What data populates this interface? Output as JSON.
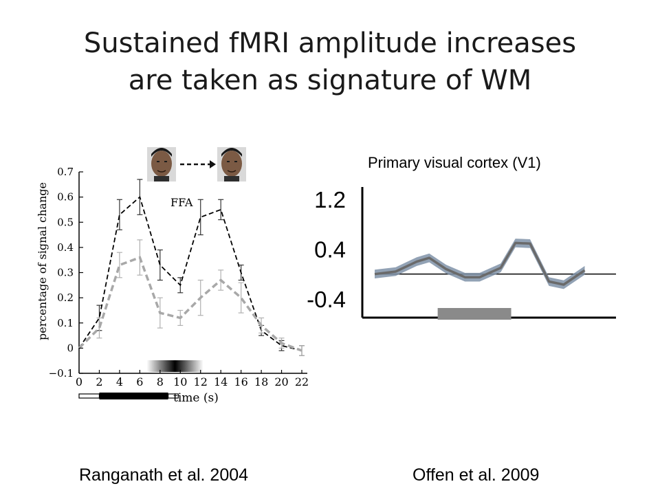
{
  "slide": {
    "title_line1": "Sustained fMRI amplitude increases",
    "title_line2": "are taken as signature of WM",
    "caption_left": "Ranganath et al. 2004",
    "caption_right": "Offen et al. 2009"
  },
  "chart_data": [
    {
      "type": "line",
      "title": "",
      "annotation": "FFA",
      "ylabel": "percentage of signal change",
      "xlabel": "time (s)",
      "x": [
        0,
        2,
        4,
        6,
        8,
        10,
        12,
        14,
        16,
        18,
        20,
        22
      ],
      "xticks": [
        "0",
        "2",
        "4",
        "6",
        "8",
        "10",
        "12",
        "14",
        "16",
        "18",
        "20",
        "22"
      ],
      "yticks": [
        "0.7",
        "0.6",
        "0.5",
        "0.4",
        "0.3",
        "0.2",
        "0.1",
        "0",
        "−0.1"
      ],
      "xlim": [
        0,
        22
      ],
      "ylim": [
        -0.1,
        0.7
      ],
      "series": [
        {
          "style": "dashed-black",
          "color": "#000000",
          "values": [
            0.0,
            0.12,
            0.53,
            0.6,
            0.33,
            0.25,
            0.52,
            0.55,
            0.3,
            0.07,
            0.01,
            -0.01
          ],
          "errors": [
            0.0,
            0.05,
            0.06,
            0.07,
            0.06,
            0.03,
            0.07,
            0.04,
            0.03,
            0.02,
            0.02,
            0.02
          ]
        },
        {
          "style": "dashed-gray",
          "color": "#a8a8a8",
          "values": [
            0.0,
            0.08,
            0.33,
            0.36,
            0.14,
            0.12,
            0.2,
            0.27,
            0.2,
            0.09,
            0.02,
            -0.01
          ],
          "errors": [
            0.0,
            0.04,
            0.05,
            0.07,
            0.06,
            0.03,
            0.07,
            0.04,
            0.06,
            0.03,
            0.02,
            0.02
          ]
        }
      ],
      "stimulus_gradient": {
        "start": 6,
        "end": 12,
        "peak": 9
      },
      "timeline_bars": [
        {
          "kind": "outline",
          "start": 0,
          "end": 2
        },
        {
          "kind": "filled",
          "start": 2,
          "end": 8.8
        },
        {
          "kind": "outline",
          "start": 8.8,
          "end": 9.8
        }
      ],
      "stimulus_icons": [
        "face-icon",
        "dashed-arrow-icon",
        "face-icon"
      ]
    },
    {
      "type": "line",
      "title": "Primary visual cortex (V1)",
      "yticks": [
        "1.2",
        "0.4",
        "-0.4"
      ],
      "ylim": [
        -0.7,
        1.4
      ],
      "xlim": [
        0,
        11
      ],
      "x": [
        0,
        1,
        2,
        3,
        4,
        5,
        6,
        7,
        8,
        9,
        10,
        11
      ],
      "series": [
        {
          "name": "",
          "color": "#6a6a6a",
          "band_color": "#7f92a8",
          "values": [
            0.0,
            0.04,
            0.2,
            0.26,
            0.08,
            -0.05,
            -0.05,
            0.1,
            0.5,
            0.49,
            -0.12,
            -0.17,
            0.06
          ],
          "x_values": [
            0,
            1,
            2,
            2.6,
            3.4,
            4.3,
            5,
            6,
            6.7,
            7.4,
            8.3,
            9,
            10
          ],
          "band": 0.07
        }
      ],
      "baseline": 0,
      "stimulus_block": {
        "start": 3,
        "end": 6.5,
        "color": "#8a8a8a"
      }
    }
  ]
}
